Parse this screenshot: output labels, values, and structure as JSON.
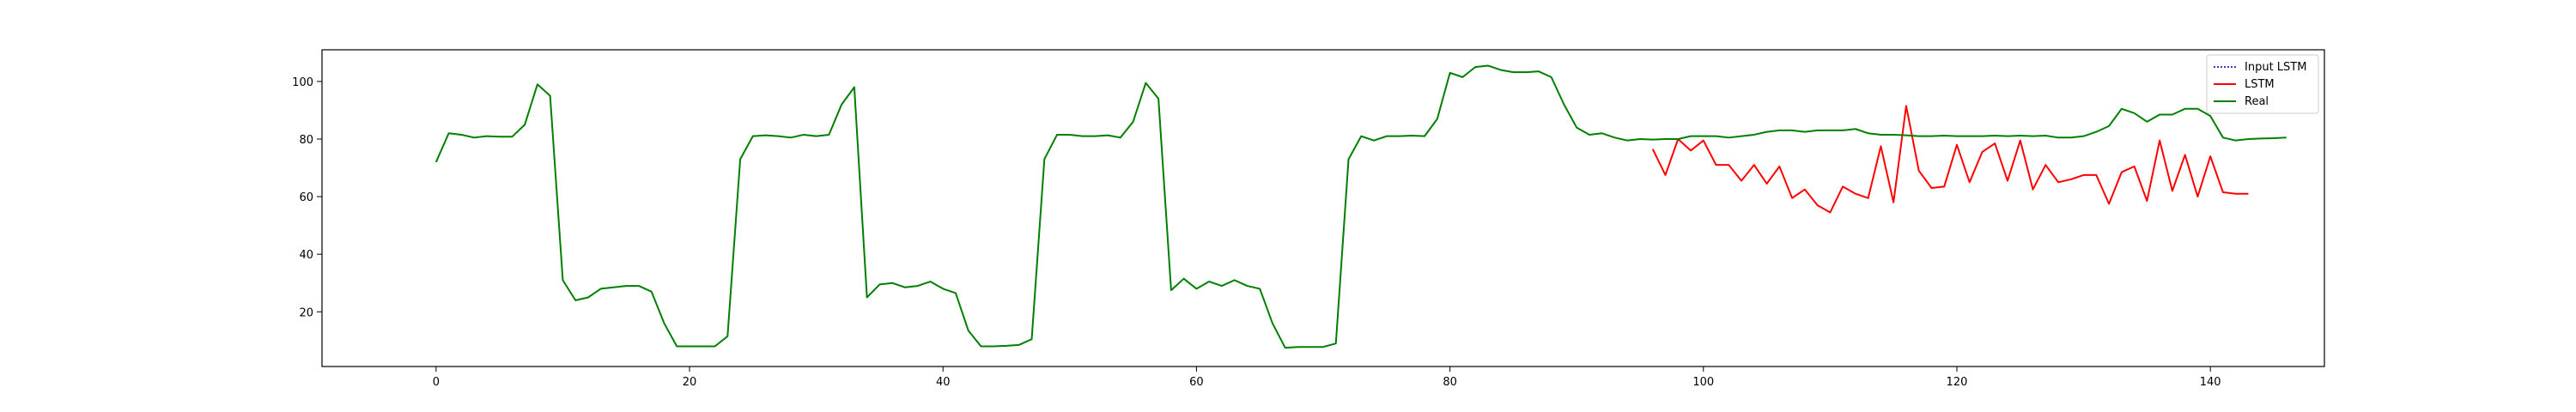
{
  "chart_data": {
    "type": "line",
    "title": "",
    "xlabel": "",
    "ylabel": "",
    "xlim": [
      -9,
      149
    ],
    "ylim": [
      1,
      111
    ],
    "xticks": [
      0,
      20,
      40,
      60,
      80,
      100,
      120,
      140
    ],
    "yticks": [
      20,
      40,
      60,
      80,
      100
    ],
    "grid": false,
    "legend": {
      "position": "top-right",
      "entries": [
        {
          "label": "Input LSTM",
          "color": "#00008b",
          "style": "dotted"
        },
        {
          "label": "LSTM",
          "color": "#ff0000",
          "style": "solid"
        },
        {
          "label": "Real",
          "color": "#008000",
          "style": "solid"
        }
      ]
    },
    "series": [
      {
        "name": "Input LSTM",
        "color": "#00008b",
        "style": "dotted",
        "x_start": 0,
        "values": [
          72,
          82,
          81.5,
          80.5,
          81,
          80.8,
          80.8,
          85,
          99,
          95,
          31,
          24,
          25,
          28,
          28.5,
          29,
          29,
          27,
          16,
          8,
          8,
          8,
          8,
          11.5,
          73,
          81,
          81.3,
          81,
          80.5,
          81.5,
          81,
          81.5,
          92,
          98,
          25,
          29.5,
          30,
          28.5,
          29,
          30.5,
          28,
          26.5,
          13.5,
          8,
          8,
          8.2,
          8.5,
          10.5,
          73,
          81.5,
          81.5,
          81,
          81,
          81.3,
          80.5,
          86,
          99.5,
          94,
          27.5,
          31.5,
          28,
          30.5,
          29,
          31,
          29,
          28,
          16,
          7.5,
          7.8,
          7.8,
          7.8,
          9,
          73,
          81,
          79.5,
          81,
          81,
          81.2,
          81,
          87,
          103,
          101.5,
          105,
          105.5,
          104,
          103.2,
          103.2,
          103.5,
          101.5,
          92,
          84,
          81.5,
          82,
          80.5,
          79.5,
          80,
          79.8
        ]
      },
      {
        "name": "LSTM",
        "color": "#ff0000",
        "style": "solid",
        "x_start": 96,
        "values": [
          76.5,
          67.5,
          80,
          76,
          79.5,
          71,
          71,
          65.5,
          71,
          64.5,
          70.5,
          59.5,
          62.5,
          57,
          54.5,
          63.5,
          61,
          59.5,
          77.5,
          58,
          91.5,
          69,
          63,
          63.5,
          78,
          65,
          75.5,
          78.5,
          65.5,
          79.5,
          62.5,
          71,
          65,
          66,
          67.5,
          67.5,
          57.5,
          68.5,
          70.5,
          58.5,
          79.5,
          62,
          74.5,
          60,
          74,
          61.5,
          61,
          61
        ]
      },
      {
        "name": "Real",
        "color": "#008000",
        "style": "solid",
        "x_start": 0,
        "values": [
          72,
          82,
          81.5,
          80.5,
          81,
          80.8,
          80.8,
          85,
          99,
          95,
          31,
          24,
          25,
          28,
          28.5,
          29,
          29,
          27,
          16,
          8,
          8,
          8,
          8,
          11.5,
          73,
          81,
          81.3,
          81,
          80.5,
          81.5,
          81,
          81.5,
          92,
          98,
          25,
          29.5,
          30,
          28.5,
          29,
          30.5,
          28,
          26.5,
          13.5,
          8,
          8,
          8.2,
          8.5,
          10.5,
          73,
          81.5,
          81.5,
          81,
          81,
          81.3,
          80.5,
          86,
          99.5,
          94,
          27.5,
          31.5,
          28,
          30.5,
          29,
          31,
          29,
          28,
          16,
          7.5,
          7.8,
          7.8,
          7.8,
          9,
          73,
          81,
          79.5,
          81,
          81,
          81.2,
          81,
          87,
          103,
          101.5,
          105,
          105.5,
          104,
          103.2,
          103.2,
          103.5,
          101.5,
          92,
          84,
          81.5,
          82,
          80.5,
          79.5,
          80,
          79.8,
          80,
          80,
          81,
          81,
          81,
          80.5,
          81,
          81.5,
          82.5,
          83,
          83,
          82.5,
          83,
          83,
          83,
          83.5,
          82,
          81.5,
          81.5,
          81.3,
          81,
          81,
          81.2,
          81,
          81,
          81,
          81.2,
          81,
          81.2,
          81,
          81.2,
          80.5,
          80.5,
          81,
          82.5,
          84.5,
          90.5,
          89,
          86,
          88.5,
          88.5,
          90.5,
          90.5,
          88,
          80.5,
          79.5,
          80,
          80.2,
          80.3,
          80.5
        ]
      }
    ]
  }
}
